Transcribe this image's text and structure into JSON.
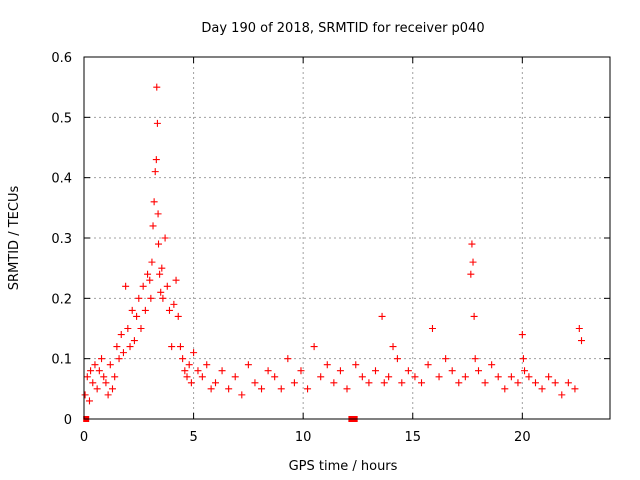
{
  "chart_data": {
    "type": "scatter",
    "title": "Day 190 of 2018, SRMTID for receiver p040",
    "xlabel": "GPS time / hours",
    "ylabel": "SRMTID / TECUs",
    "xlim": [
      0,
      24
    ],
    "ylim": [
      0,
      0.6
    ],
    "grid": true,
    "marker": "plus",
    "color": "#ff0000",
    "x_ticks": [
      0,
      5,
      10,
      15,
      20
    ],
    "x_tick_labels": [
      "0",
      "5",
      "10",
      "15",
      "20"
    ],
    "y_ticks": [
      0,
      0.1,
      0.2,
      0.3,
      0.4,
      0.5,
      0.6
    ],
    "y_tick_labels": [
      "0",
      "0.1",
      "0.2",
      "0.3",
      "0.4",
      "0.5",
      "0.6"
    ],
    "series": [
      {
        "name": "SRMTID",
        "x": [
          0.05,
          0.15,
          0.25,
          0.3,
          0.4,
          0.5,
          0.6,
          0.7,
          0.8,
          0.9,
          1.0,
          1.1,
          1.2,
          1.3,
          1.4,
          1.5,
          1.6,
          1.7,
          1.8,
          1.9,
          2.0,
          2.1,
          2.2,
          2.3,
          2.4,
          2.5,
          2.6,
          2.7,
          2.8,
          2.9,
          3.0,
          3.05,
          3.1,
          3.15,
          3.2,
          3.25,
          3.3,
          3.32,
          3.35,
          3.38,
          3.4,
          3.45,
          3.5,
          3.55,
          3.6,
          3.7,
          3.8,
          3.9,
          4.0,
          4.1,
          4.2,
          4.3,
          4.4,
          4.5,
          4.6,
          4.7,
          4.8,
          4.9,
          5.0,
          5.2,
          5.4,
          5.6,
          5.8,
          6.0,
          6.3,
          6.6,
          6.9,
          7.2,
          7.5,
          7.8,
          8.1,
          8.4,
          8.7,
          9.0,
          9.3,
          9.6,
          9.9,
          10.2,
          10.5,
          10.8,
          11.1,
          11.4,
          11.7,
          12.0,
          12.4,
          12.7,
          13.0,
          13.3,
          13.6,
          13.7,
          13.9,
          14.1,
          14.3,
          14.5,
          14.8,
          15.1,
          15.4,
          15.7,
          15.9,
          16.2,
          16.5,
          16.8,
          17.1,
          17.4,
          17.65,
          17.7,
          17.75,
          17.8,
          17.85,
          18.0,
          18.3,
          18.6,
          18.9,
          19.2,
          19.5,
          19.8,
          20.0,
          20.05,
          20.1,
          20.3,
          20.6,
          20.9,
          21.2,
          21.5,
          21.8,
          22.1,
          22.4,
          22.6,
          22.7
        ],
        "y": [
          0.04,
          0.07,
          0.03,
          0.08,
          0.06,
          0.09,
          0.05,
          0.08,
          0.1,
          0.07,
          0.06,
          0.04,
          0.09,
          0.05,
          0.07,
          0.12,
          0.1,
          0.14,
          0.11,
          0.22,
          0.15,
          0.12,
          0.18,
          0.13,
          0.17,
          0.2,
          0.15,
          0.22,
          0.18,
          0.24,
          0.23,
          0.2,
          0.26,
          0.32,
          0.36,
          0.41,
          0.43,
          0.55,
          0.49,
          0.34,
          0.29,
          0.24,
          0.21,
          0.25,
          0.2,
          0.3,
          0.22,
          0.18,
          0.12,
          0.19,
          0.23,
          0.17,
          0.12,
          0.1,
          0.08,
          0.07,
          0.09,
          0.06,
          0.11,
          0.08,
          0.07,
          0.09,
          0.05,
          0.06,
          0.08,
          0.05,
          0.07,
          0.04,
          0.09,
          0.06,
          0.05,
          0.08,
          0.07,
          0.05,
          0.1,
          0.06,
          0.08,
          0.05,
          0.12,
          0.07,
          0.09,
          0.06,
          0.08,
          0.05,
          0.09,
          0.07,
          0.06,
          0.08,
          0.17,
          0.06,
          0.07,
          0.12,
          0.1,
          0.06,
          0.08,
          0.07,
          0.06,
          0.09,
          0.15,
          0.07,
          0.1,
          0.08,
          0.06,
          0.07,
          0.24,
          0.29,
          0.26,
          0.17,
          0.1,
          0.08,
          0.06,
          0.09,
          0.07,
          0.05,
          0.07,
          0.06,
          0.14,
          0.1,
          0.08,
          0.07,
          0.06,
          0.05,
          0.07,
          0.06,
          0.04,
          0.06,
          0.05,
          0.15,
          0.13
        ]
      },
      {
        "name": "flagged",
        "x": [
          0.1,
          12.2,
          12.35
        ],
        "y": [
          0.0,
          0.0,
          0.0
        ],
        "marker": "square"
      }
    ]
  }
}
